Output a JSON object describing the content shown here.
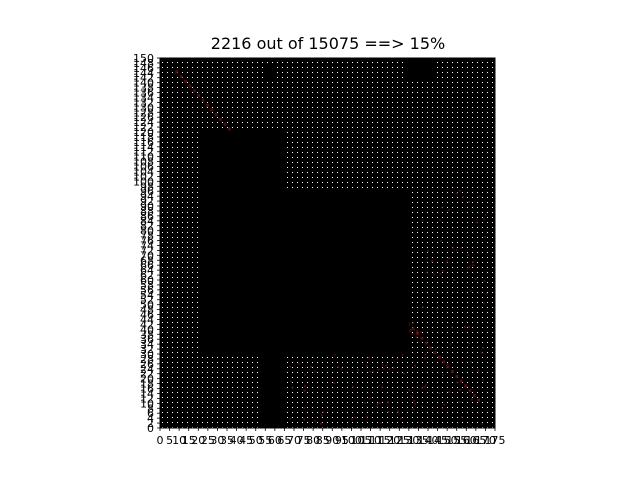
{
  "chart_data": {
    "type": "heatmap",
    "title": "2216 out of 15075 ==> 15%",
    "xlabel": "",
    "ylabel": "",
    "xlim": [
      0,
      175
    ],
    "ylim": [
      0,
      150
    ],
    "x_tick_labels_first_last": [
      "0",
      "175"
    ],
    "y_tick_labels_first_last": [
      "0",
      "150"
    ],
    "tick_labels_overlap": true,
    "grid": false,
    "legend": "none",
    "background_color": "#000000",
    "dot_color": "#ffffff",
    "highlight_color": "#5a1010",
    "solid_black_blocks": [
      {
        "x": [
          20,
          66
        ],
        "y": [
          30,
          120
        ]
      },
      {
        "x": [
          66,
          130
        ],
        "y": [
          30,
          97
        ]
      },
      {
        "x": [
          52,
          66
        ],
        "y": [
          0,
          30
        ]
      },
      {
        "x": [
          128,
          143
        ],
        "y": [
          141,
          150
        ]
      },
      {
        "x": [
          54,
          60
        ],
        "y": [
          141,
          147
        ]
      }
    ]
  }
}
